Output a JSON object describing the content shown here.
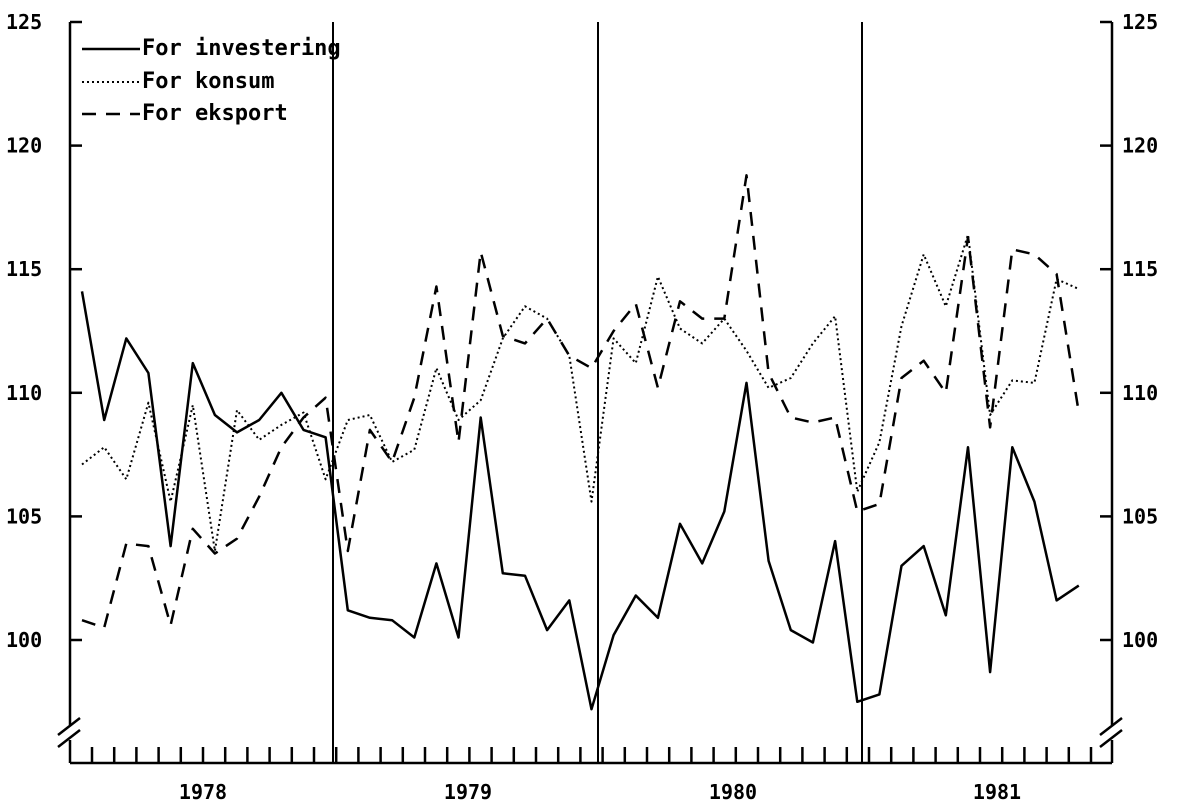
{
  "chart_data": {
    "type": "line",
    "title": "",
    "xlabel": "",
    "ylabel": "",
    "ylim": [
      95.5,
      125
    ],
    "yticks": [
      100,
      105,
      110,
      115,
      120,
      125
    ],
    "ytick_labels": [
      "100",
      "105",
      "110",
      "115",
      "120",
      "125"
    ],
    "axis_break": true,
    "year_dividers": [
      1979,
      1980,
      1981
    ],
    "year_labels": [
      "1978",
      "1979",
      "1980",
      "1981"
    ],
    "x_start": 1978,
    "months_per_year": 12,
    "grid": false,
    "legend_position": "top-left",
    "series": [
      {
        "name": "For investering",
        "style": "solid",
        "values": [
          114.1,
          108.9,
          112.2,
          110.8,
          103.8,
          111.2,
          109.1,
          108.4,
          108.9,
          110.0,
          108.5,
          108.2,
          101.2,
          100.9,
          100.8,
          100.1,
          103.1,
          100.1,
          109.0,
          102.7,
          102.6,
          100.4,
          101.6,
          97.2,
          100.2,
          101.8,
          100.9,
          104.7,
          103.1,
          105.2,
          110.4,
          103.2,
          100.4,
          99.9,
          104.0,
          97.5,
          97.8,
          103.0,
          103.8,
          101.0,
          107.8,
          98.7,
          107.8,
          105.6,
          101.6,
          102.2
        ]
      },
      {
        "name": "For konsum",
        "style": "dotted",
        "values": [
          107.1,
          107.8,
          106.5,
          109.6,
          105.6,
          109.5,
          103.6,
          109.3,
          108.1,
          108.7,
          109.2,
          106.5,
          108.9,
          109.1,
          107.2,
          107.7,
          111.0,
          108.9,
          109.7,
          112.2,
          113.5,
          113.0,
          111.5,
          105.6,
          112.2,
          111.2,
          114.7,
          112.6,
          112.0,
          113.0,
          111.7,
          110.2,
          110.6,
          112.0,
          113.1,
          106.0,
          108.0,
          112.7,
          115.6,
          113.5,
          116.4,
          109.1,
          110.5,
          110.4,
          114.6,
          114.2
        ]
      },
      {
        "name": "For eksport",
        "style": "dashed",
        "values": [
          100.8,
          100.5,
          103.9,
          103.8,
          100.6,
          104.5,
          103.5,
          104.1,
          105.8,
          107.8,
          109.0,
          109.8,
          103.6,
          108.5,
          107.2,
          109.8,
          114.3,
          108.0,
          115.7,
          112.3,
          112.0,
          113.0,
          111.5,
          111.0,
          112.5,
          113.6,
          110.2,
          113.7,
          113.0,
          113.0,
          118.8,
          110.8,
          109.0,
          108.8,
          109.0,
          105.2,
          105.5,
          110.6,
          111.3,
          110.0,
          116.3,
          108.6,
          115.8,
          115.6,
          114.8,
          109.2
        ]
      }
    ]
  }
}
